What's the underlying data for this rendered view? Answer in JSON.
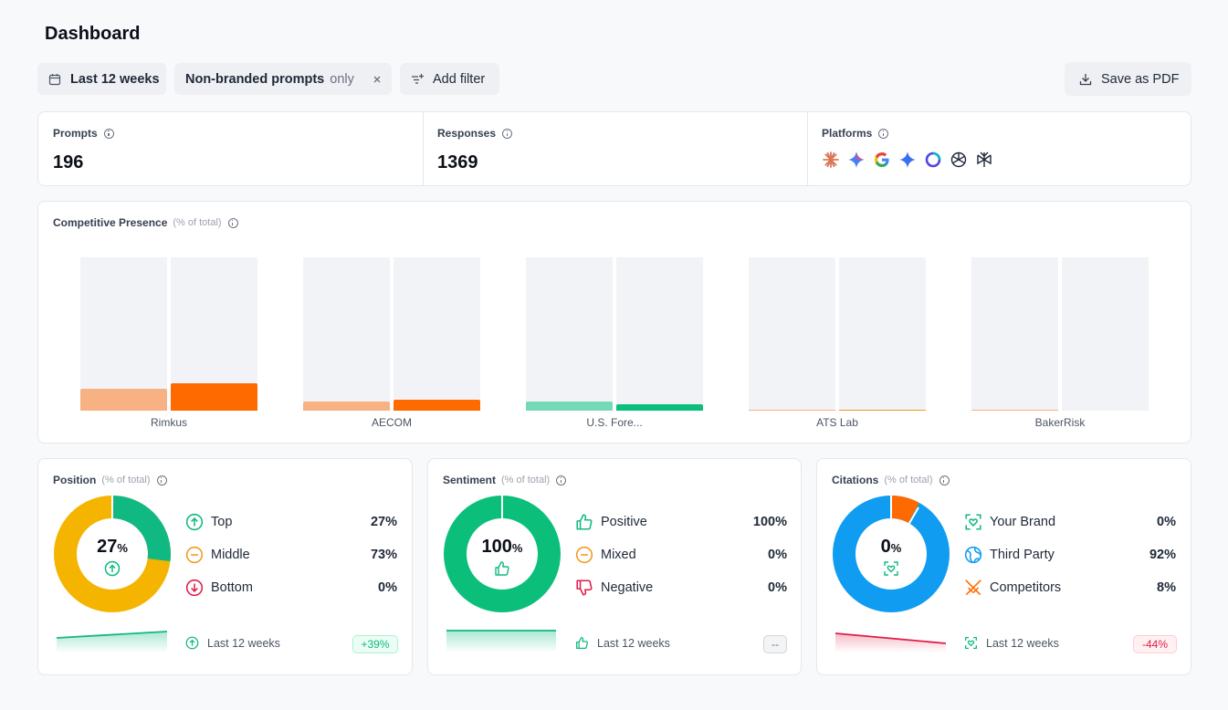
{
  "page": {
    "title": "Dashboard"
  },
  "filters": {
    "date_range": "Last 12 weeks",
    "prompt_filter": "Non-branded prompts",
    "prompt_filter_suffix": "only",
    "add_filter": "Add filter",
    "save_pdf": "Save as PDF"
  },
  "stats": {
    "prompts_label": "Prompts",
    "prompts_value": "196",
    "responses_label": "Responses",
    "responses_value": "1369",
    "platforms_label": "Platforms",
    "platforms": [
      "claude-icon",
      "gemini-icon",
      "google-icon",
      "gemini-alt-icon",
      "copilot-icon",
      "openai-icon",
      "perplexity-icon"
    ]
  },
  "competitive": {
    "title": "Competitive Presence",
    "subtitle": "(% of total)",
    "chart_data": {
      "type": "bar",
      "categories": [
        "Rimkus",
        "AECOM",
        "U.S. Fore...",
        "ATS Lab",
        "BakerRisk"
      ],
      "series": [
        {
          "name": "previous",
          "values": [
            14,
            6,
            6,
            0.5,
            0.5
          ]
        },
        {
          "name": "current",
          "values": [
            18,
            7,
            4,
            0.7,
            0
          ]
        }
      ],
      "colors": [
        [
          "#f7b183",
          "#ff6a00"
        ],
        [
          "#f7b183",
          "#ff6a00"
        ],
        [
          "#74d9b6",
          "#0bbf7a"
        ],
        [
          "#f7b183",
          "#f29a1e"
        ],
        [
          "#f7b183",
          "#ff6a00"
        ]
      ],
      "ylim": [
        0,
        100
      ]
    }
  },
  "position": {
    "title": "Position",
    "subtitle": "(% of total)",
    "center_value": "27",
    "items": [
      {
        "label": "Top",
        "value": "27%"
      },
      {
        "label": "Middle",
        "value": "73%"
      },
      {
        "label": "Bottom",
        "value": "0%"
      }
    ],
    "footer": "Last 12 weeks",
    "badge": "+39%"
  },
  "sentiment": {
    "title": "Sentiment",
    "subtitle": "(% of total)",
    "center_value": "100",
    "items": [
      {
        "label": "Positive",
        "value": "100%"
      },
      {
        "label": "Mixed",
        "value": "0%"
      },
      {
        "label": "Negative",
        "value": "0%"
      }
    ],
    "footer": "Last 12 weeks",
    "badge": "--"
  },
  "citations": {
    "title": "Citations",
    "subtitle": "(% of total)",
    "center_value": "0",
    "items": [
      {
        "label": "Your Brand",
        "value": "0%"
      },
      {
        "label": "Third Party",
        "value": "92%"
      },
      {
        "label": "Competitors",
        "value": "8%"
      }
    ],
    "footer": "Last 12 weeks",
    "badge": "-44%"
  },
  "pct_symbol": "%"
}
